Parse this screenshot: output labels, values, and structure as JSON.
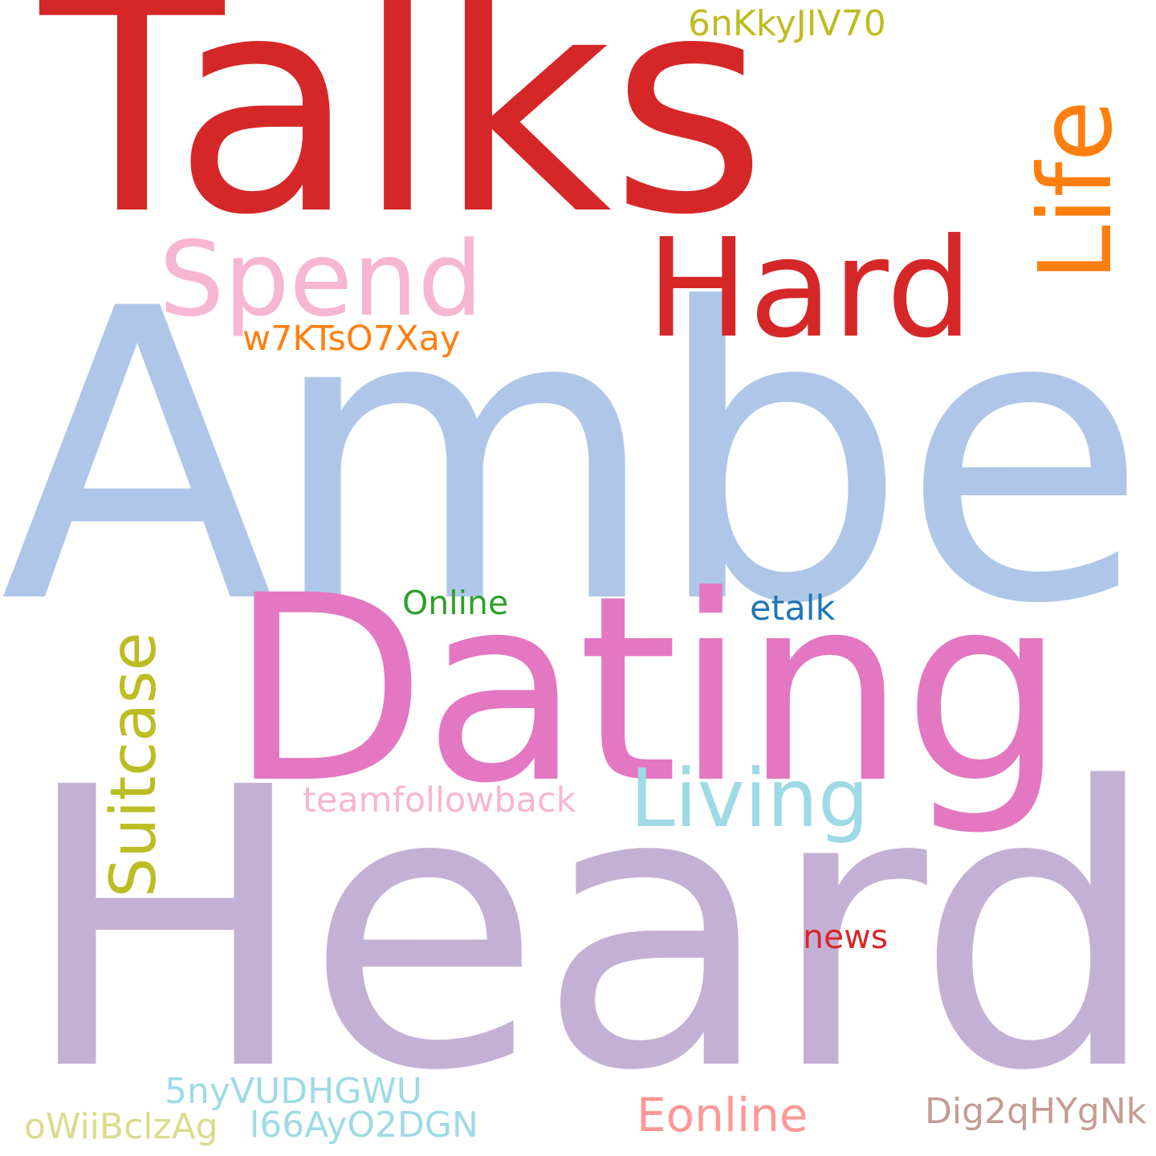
{
  "words": {
    "talks": {
      "text": "Talks",
      "color": "#d62728"
    },
    "amber": {
      "text": "Amber",
      "color": "#aec7e8"
    },
    "heard": {
      "text": "Heard",
      "color": "#c5b0d5"
    },
    "dating": {
      "text": "Dating",
      "color": "#e377c2"
    },
    "hard": {
      "text": "Hard",
      "color": "#d62728"
    },
    "spend": {
      "text": "Spend",
      "color": "#f7b6d2"
    },
    "life": {
      "text": "Life",
      "color": "#ff7f0e"
    },
    "living": {
      "text": "Living",
      "color": "#9edae5"
    },
    "suitcase": {
      "text": "Suitcase",
      "color": "#bcbd22"
    },
    "w7ktso7xay": {
      "text": "w7KTsO7Xay",
      "color": "#ff7f0e"
    },
    "6nkkyjiv70": {
      "text": "6nKkyJIV70",
      "color": "#bcbd22"
    },
    "online": {
      "text": "Online",
      "color": "#2ca02c"
    },
    "etalk": {
      "text": "etalk",
      "color": "#1f77b4"
    },
    "teamfollowback": {
      "text": "teamfollowback",
      "color": "#f7b6d2"
    },
    "news": {
      "text": "news",
      "color": "#d62728"
    },
    "5nyvudhgwu": {
      "text": "5nyVUDHGWU",
      "color": "#9edae5"
    },
    "owiibclzag": {
      "text": "oWiiBclzAg",
      "color": "#dbdb8d"
    },
    "l66ayo2dgn": {
      "text": "l66AyO2DGN",
      "color": "#9edae5"
    },
    "eonline": {
      "text": "Eonline",
      "color": "#ff9896"
    },
    "dig2qhygnk": {
      "text": "Dig2qHYgNk",
      "color": "#c49c94"
    }
  }
}
